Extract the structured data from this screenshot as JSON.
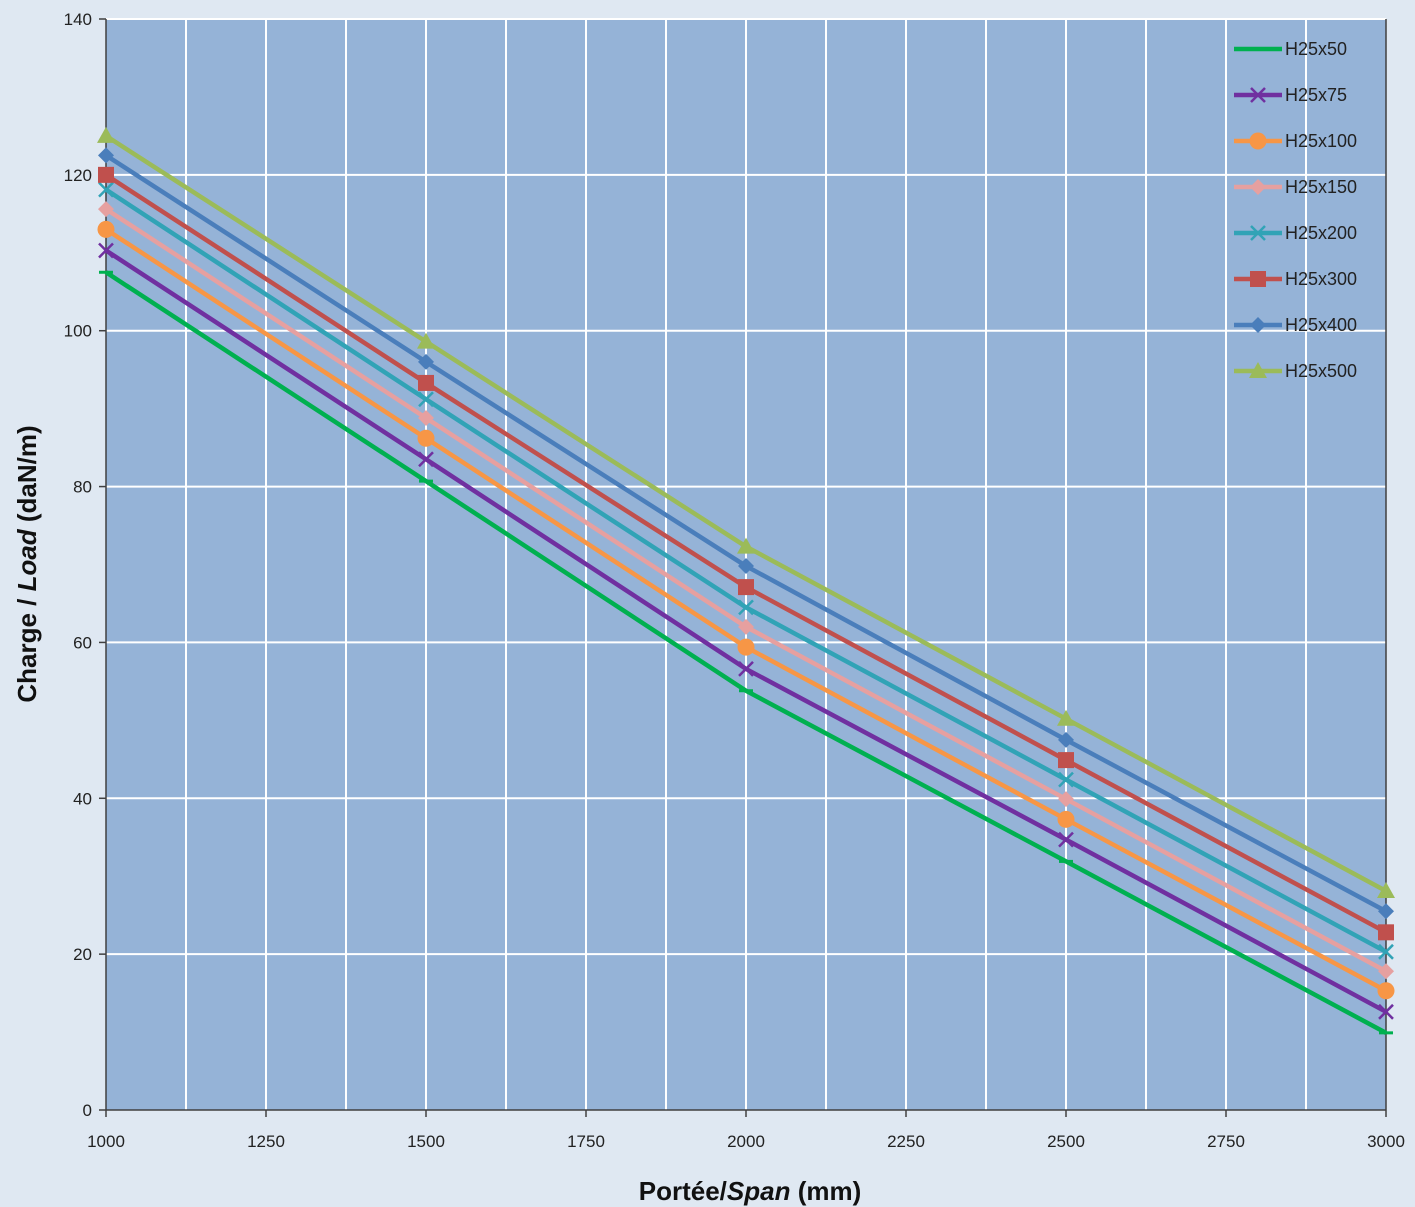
{
  "chart_data": {
    "type": "line",
    "xlabel": {
      "main": "Portée/",
      "italic": "Span",
      "unit": " (mm)"
    },
    "ylabel": {
      "main": "Charge / ",
      "italic": "Load",
      "unit": " (daN/m)"
    },
    "xlim": [
      1000,
      3000
    ],
    "ylim": [
      0,
      140
    ],
    "x_ticks": [
      1000,
      1250,
      1500,
      1750,
      2000,
      2250,
      2500,
      2750,
      3000
    ],
    "y_ticks": [
      0,
      20,
      40,
      60,
      80,
      100,
      120,
      140
    ],
    "grid": true,
    "legend_position": "top-right",
    "plot_background": "#95b3d7",
    "x": [
      1000,
      1500,
      2000,
      2500,
      3000
    ],
    "series": [
      {
        "name": "H25x50",
        "color": "#00b050",
        "marker": "dash",
        "values": [
          107.5,
          80.7,
          53.8,
          31.9,
          9.9
        ]
      },
      {
        "name": "H25x75",
        "color": "#7030a0",
        "marker": "x",
        "values": [
          110.3,
          83.5,
          56.6,
          34.7,
          12.6
        ]
      },
      {
        "name": "H25x100",
        "color": "#f79646",
        "marker": "circle",
        "values": [
          113.0,
          86.2,
          59.4,
          37.3,
          15.3
        ]
      },
      {
        "name": "H25x150",
        "color": "#e6a0a0",
        "marker": "diamond",
        "values": [
          115.6,
          88.8,
          62.0,
          39.9,
          17.8
        ]
      },
      {
        "name": "H25x200",
        "color": "#31a3b6",
        "marker": "x",
        "values": [
          118.1,
          91.2,
          64.5,
          42.4,
          20.3
        ]
      },
      {
        "name": "H25x300",
        "color": "#c0504d",
        "marker": "square",
        "values": [
          120.0,
          93.3,
          67.1,
          44.9,
          22.8
        ]
      },
      {
        "name": "H25x400",
        "color": "#4a7ebb",
        "marker": "diamond",
        "values": [
          122.5,
          96.0,
          69.8,
          47.5,
          25.5
        ]
      },
      {
        "name": "H25x500",
        "color": "#9bbb59",
        "marker": "triangle",
        "values": [
          125.0,
          98.6,
          72.3,
          50.2,
          28.1
        ]
      }
    ]
  }
}
